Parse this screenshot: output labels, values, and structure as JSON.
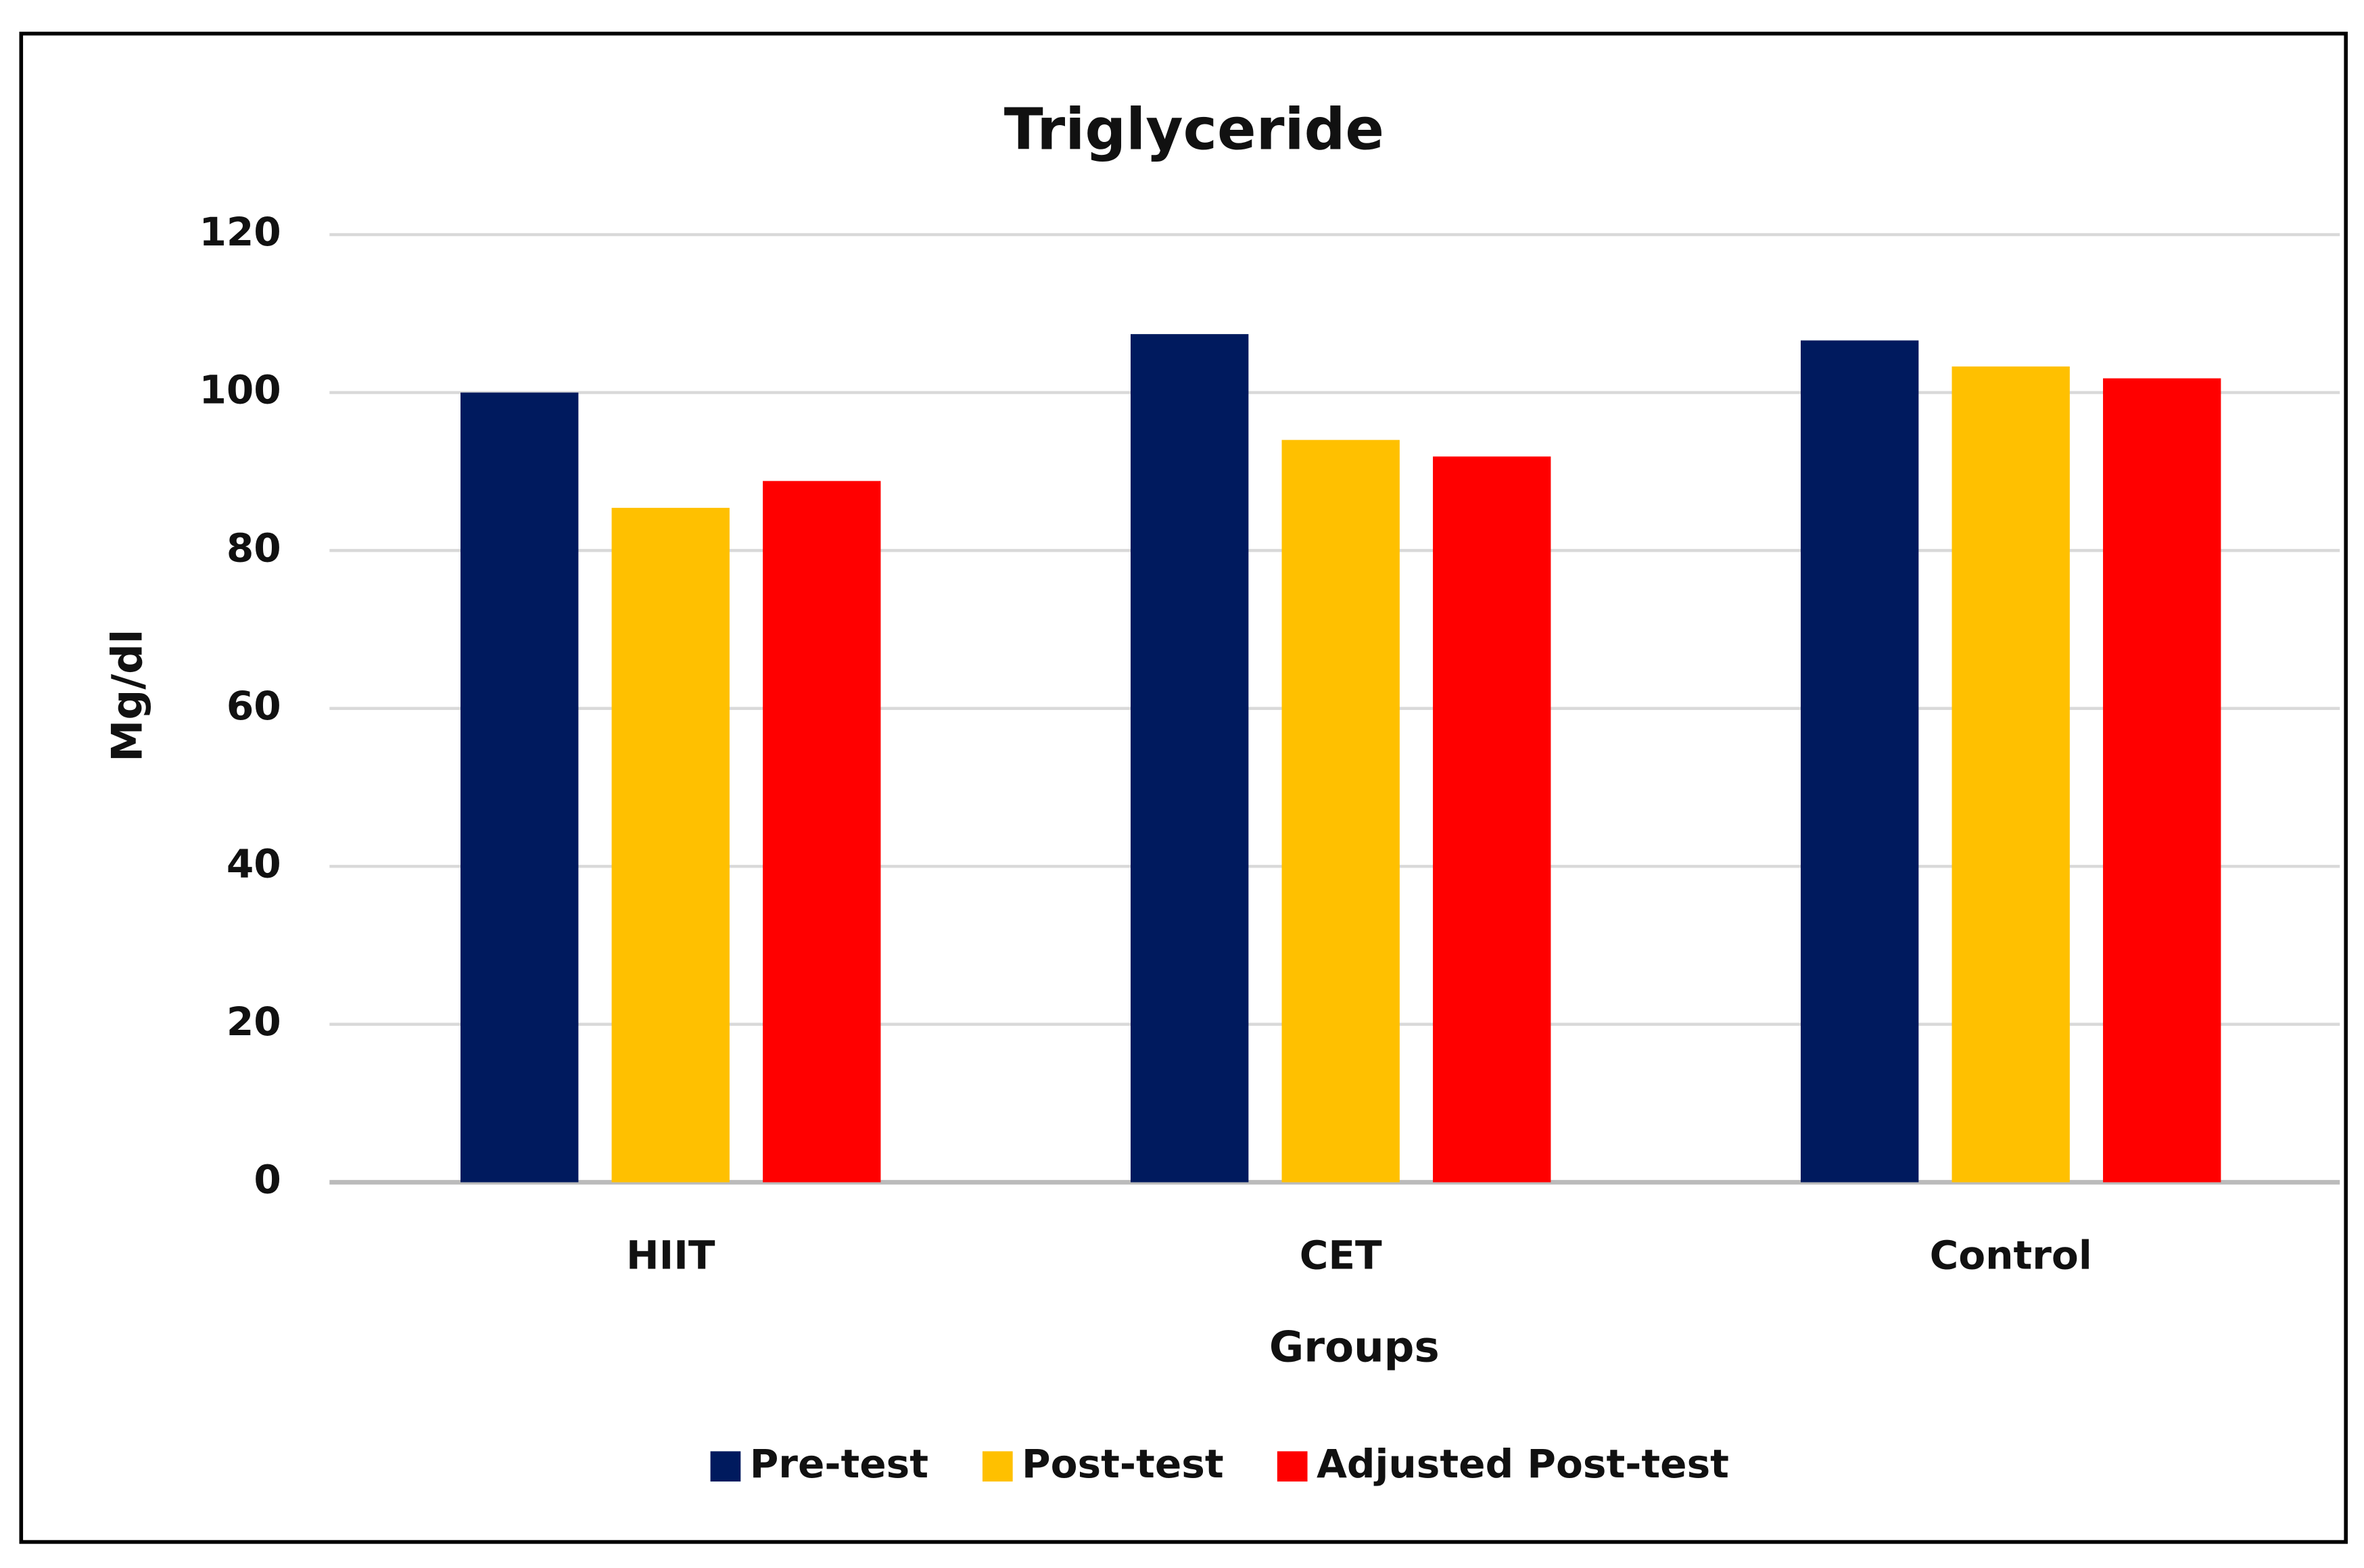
{
  "chart_data": {
    "type": "bar",
    "title": "Triglyceride",
    "x_label": "Groups",
    "y_label": "Mg/dl",
    "categories": [
      "HIIT",
      "CET",
      "Control"
    ],
    "series": [
      {
        "name": "Pre-test",
        "color": "#001a5e",
        "values": [
          100,
          107.4,
          106.6
        ]
      },
      {
        "name": "Post-test",
        "color": "#ffc000",
        "values": [
          85.4,
          94,
          103.3
        ]
      },
      {
        "name": "Adjusted Post-test",
        "color": "#ff0000",
        "values": [
          88.8,
          91.9,
          101.8
        ]
      }
    ],
    "ylim": [
      0,
      120
    ],
    "yticks": [
      0,
      20,
      40,
      60,
      80,
      100,
      120
    ],
    "grid": true,
    "legend": "bottom"
  }
}
